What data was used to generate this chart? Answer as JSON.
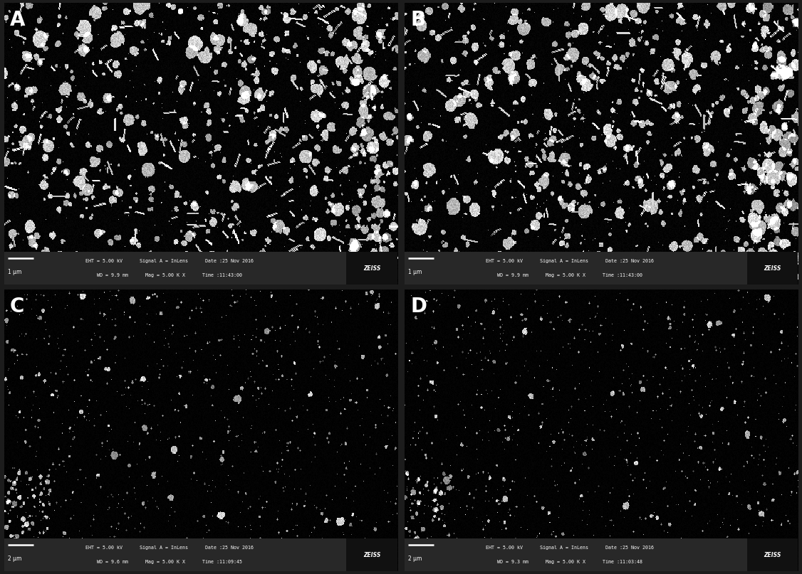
{
  "panels": [
    "A",
    "B",
    "C",
    "D"
  ],
  "figsize": [
    11.26,
    8.07
  ],
  "bg_color": "#000000",
  "fig_bg_color": "#1c1c1c",
  "label_color": "#ffffff",
  "label_fontsize": 20,
  "label_fontweight": "bold",
  "scalebar_texts": [
    "1 μm",
    "1 μm",
    "2 μm",
    "2 μm"
  ],
  "info_line1": [
    "EHT = 5.00 kV      Signal A = InLens      Date :25 Nov 2016",
    "EHT = 5.00 kV      Signal A = InLens      Date :25 Nov 2016",
    "EHT = 5.00 kV      Signal A = InLens      Date :25 Nov 2016",
    "EHT = 5.00 kV      Signal A = InLens      Date :25 Nov 2016"
  ],
  "info_line2": [
    "WD = 9.9 mm      Mag = 5.00 K X      Time :11:43:00",
    "WD = 9.9 mm      Mag = 5.00 K X      Time :11:43:00",
    "WD = 9.6 mm      Mag = 5.00 K X      Time :11:09:45",
    "WD = 9.3 mm      Mag = 5.00 K X      Time :11:03:48"
  ],
  "seeds": [
    42,
    123,
    200,
    300
  ],
  "bar_facecolor": "#282828",
  "zeiss_facecolor": "#111111",
  "wspace": 0.018,
  "hspace": 0.018
}
